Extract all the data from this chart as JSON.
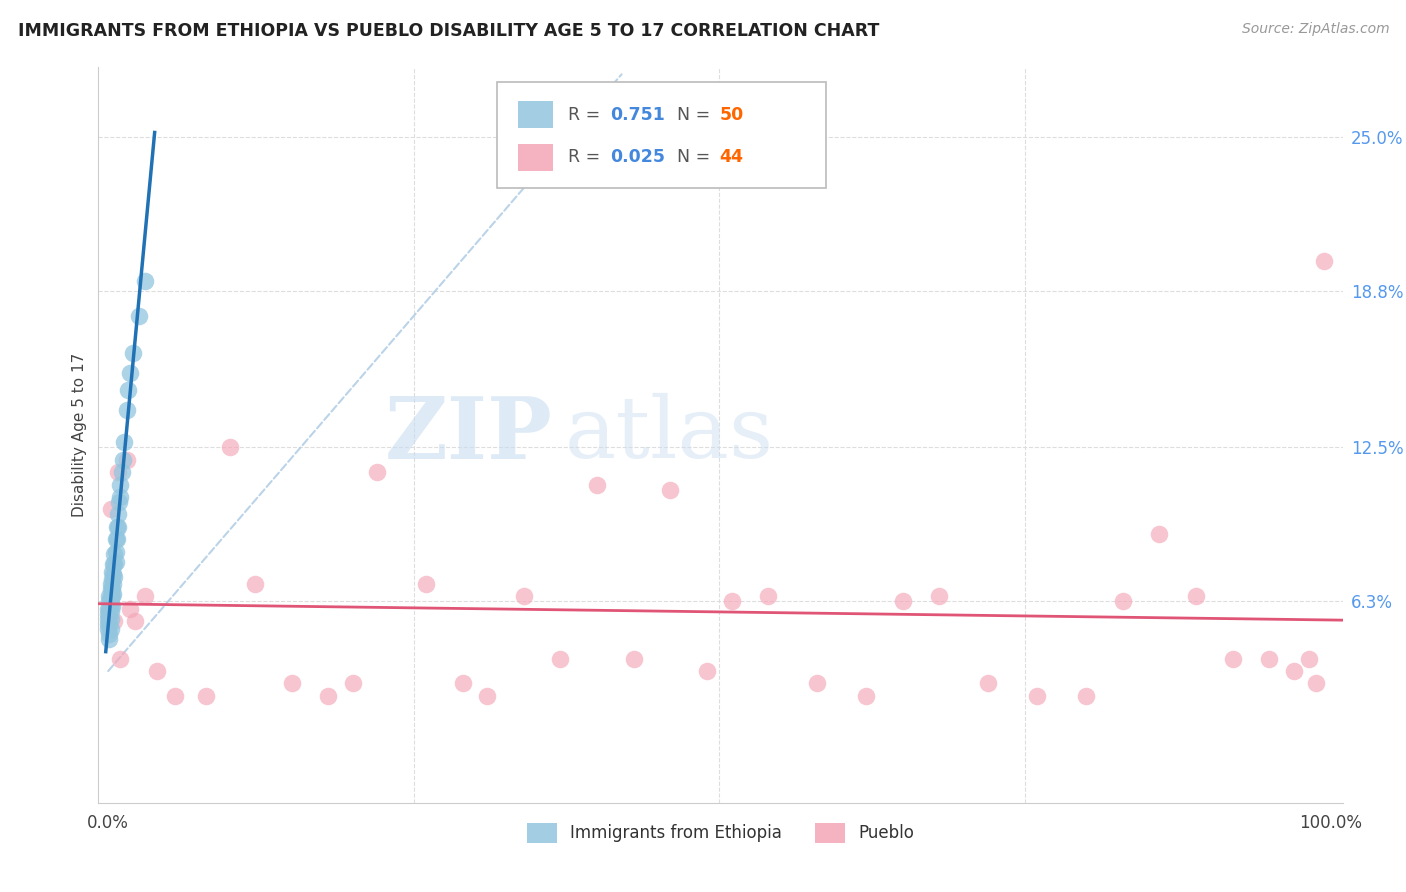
{
  "title": "IMMIGRANTS FROM ETHIOPIA VS PUEBLO DISABILITY AGE 5 TO 17 CORRELATION CHART",
  "source": "Source: ZipAtlas.com",
  "ylabel": "Disability Age 5 to 17",
  "yticks": [
    0.063,
    0.125,
    0.188,
    0.25
  ],
  "ytick_labels": [
    "6.3%",
    "12.5%",
    "18.8%",
    "25.0%"
  ],
  "xlim": [
    -0.008,
    1.01
  ],
  "ylim": [
    -0.018,
    0.278
  ],
  "blue_color": "#92c5de",
  "pink_color": "#f4a6b8",
  "blue_line_color": "#2171b5",
  "pink_line_color": "#e05575",
  "ref_line_color": "#b0cce4",
  "blue_r": "0.751",
  "blue_n": "50",
  "pink_r": "0.025",
  "pink_n": "44",
  "r_color": "#4488dd",
  "n_color": "#ff6600",
  "legend_label_color": "#555555",
  "blue_scatter_x": [
    0.0,
    0.0,
    0.0,
    0.0,
    0.0,
    0.001,
    0.001,
    0.001,
    0.001,
    0.001,
    0.001,
    0.001,
    0.002,
    0.002,
    0.002,
    0.002,
    0.002,
    0.002,
    0.002,
    0.003,
    0.003,
    0.003,
    0.003,
    0.003,
    0.004,
    0.004,
    0.004,
    0.004,
    0.005,
    0.005,
    0.005,
    0.006,
    0.006,
    0.006,
    0.007,
    0.007,
    0.008,
    0.008,
    0.009,
    0.01,
    0.01,
    0.011,
    0.012,
    0.013,
    0.015,
    0.016,
    0.018,
    0.02,
    0.025,
    0.03
  ],
  "blue_scatter_y": [
    0.06,
    0.058,
    0.056,
    0.054,
    0.052,
    0.065,
    0.063,
    0.06,
    0.057,
    0.054,
    0.05,
    0.048,
    0.07,
    0.068,
    0.065,
    0.062,
    0.059,
    0.056,
    0.052,
    0.075,
    0.072,
    0.068,
    0.065,
    0.061,
    0.078,
    0.074,
    0.07,
    0.066,
    0.082,
    0.078,
    0.073,
    0.088,
    0.083,
    0.079,
    0.093,
    0.088,
    0.098,
    0.093,
    0.103,
    0.11,
    0.105,
    0.115,
    0.12,
    0.127,
    0.14,
    0.148,
    0.155,
    0.163,
    0.178,
    0.192
  ],
  "pink_scatter_x": [
    0.002,
    0.005,
    0.008,
    0.01,
    0.015,
    0.018,
    0.022,
    0.03,
    0.04,
    0.055,
    0.08,
    0.1,
    0.12,
    0.15,
    0.18,
    0.2,
    0.22,
    0.26,
    0.29,
    0.31,
    0.34,
    0.37,
    0.4,
    0.43,
    0.46,
    0.49,
    0.51,
    0.54,
    0.58,
    0.62,
    0.65,
    0.68,
    0.72,
    0.76,
    0.8,
    0.83,
    0.86,
    0.89,
    0.92,
    0.95,
    0.97,
    0.982,
    0.988,
    0.995
  ],
  "pink_scatter_y": [
    0.1,
    0.055,
    0.115,
    0.04,
    0.12,
    0.06,
    0.055,
    0.065,
    0.035,
    0.025,
    0.025,
    0.125,
    0.07,
    0.03,
    0.025,
    0.03,
    0.115,
    0.07,
    0.03,
    0.025,
    0.065,
    0.04,
    0.11,
    0.04,
    0.108,
    0.035,
    0.063,
    0.065,
    0.03,
    0.025,
    0.063,
    0.065,
    0.03,
    0.025,
    0.025,
    0.063,
    0.09,
    0.065,
    0.04,
    0.04,
    0.035,
    0.04,
    0.03,
    0.2
  ],
  "grid_color": "#dddddd",
  "spine_color": "#cccccc",
  "tick_color": "#444444",
  "ytick_color": "#5599ee",
  "title_color": "#222222",
  "source_color": "#999999"
}
